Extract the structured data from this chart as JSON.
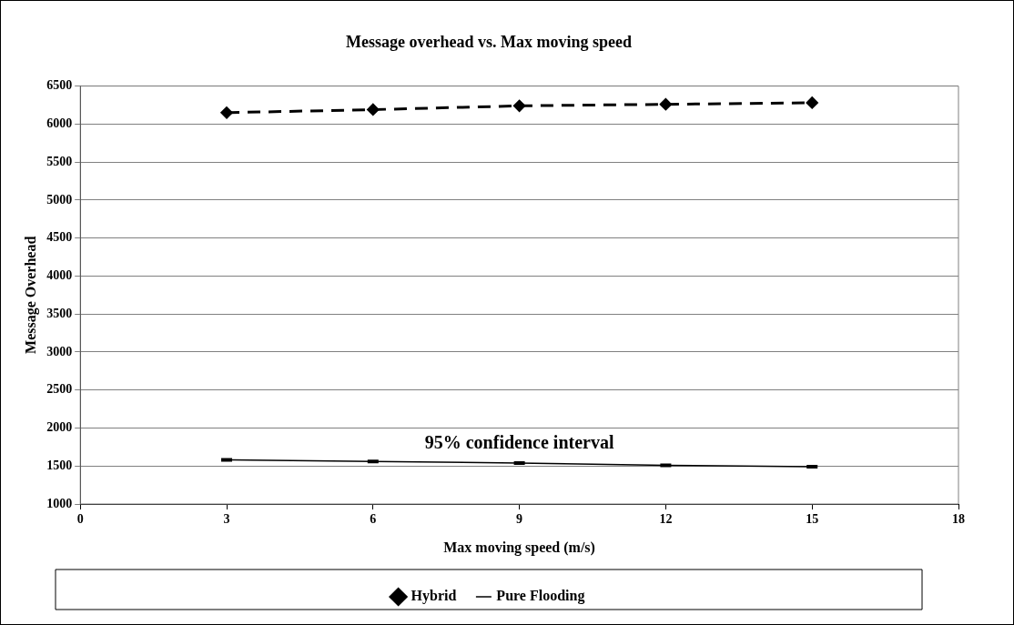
{
  "chart_data": {
    "type": "line",
    "title": "Message overhead vs. Max moving speed",
    "xlabel": "Max moving speed (m/s)",
    "ylabel": "Message Overhead",
    "x": [
      3,
      6,
      9,
      12,
      15
    ],
    "series": [
      {
        "name": "Hybrid",
        "color": "#000000",
        "values": [
          6150,
          6190,
          6240,
          6260,
          6280
        ],
        "marker": "diamond",
        "line_style": "dashed"
      },
      {
        "name": "Pure Flooding",
        "color": "#000000",
        "values": [
          1580,
          1560,
          1540,
          1510,
          1490
        ],
        "marker": "none",
        "line_style": "solid",
        "errors": [
          12,
          12,
          12,
          12,
          12
        ]
      }
    ],
    "xlim": [
      0,
      18
    ],
    "xticks": [
      0,
      3,
      6,
      9,
      12,
      15,
      18
    ],
    "ylim": [
      1000,
      6500
    ],
    "yticks": [
      1000,
      1500,
      2000,
      2500,
      3000,
      3500,
      4000,
      4500,
      5000,
      5500,
      6000,
      6500
    ],
    "grid": "y",
    "legend": "bottom",
    "annotations": [
      "95% confidence interval"
    ]
  }
}
